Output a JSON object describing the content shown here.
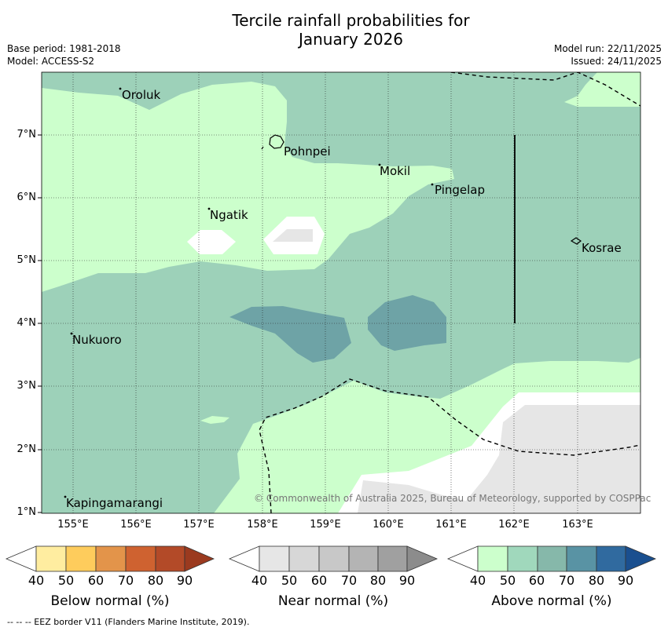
{
  "title_line1": "Tercile rainfall probabilities for",
  "title_line2": "January 2026",
  "meta_left": {
    "base_period": "Base period: 1981-2018",
    "model": "Model: ACCESS-S2"
  },
  "meta_right": {
    "model_run": "Model run: 22/11/2025",
    "issued": "Issued: 24/11/2025"
  },
  "lat_labels": [
    "7°N",
    "6°N",
    "5°N",
    "4°N",
    "3°N",
    "2°N",
    "1°N"
  ],
  "lon_labels": [
    "155°E",
    "156°E",
    "157°E",
    "158°E",
    "159°E",
    "160°E",
    "161°E",
    "162°E",
    "163°E"
  ],
  "places": {
    "oroluk": "Oroluk",
    "pohnpei": "Pohnpei",
    "mokil": "Mokil",
    "pingelap": "Pingelap",
    "ngatik": "Ngatik",
    "kosrae": "Kosrae",
    "nukuoro": "Nukuoro",
    "kapingamarangi": "Kapingamarangi"
  },
  "credit": "© Commonwealth of Australia 2025, Bureau of Meteorology, supported by COSPPac",
  "colorbars": {
    "below": {
      "label": "Below normal (%)",
      "ticks": [
        "40",
        "50",
        "60",
        "70",
        "80",
        "90"
      ],
      "colors": [
        "#ffeda0",
        "#fecc5c",
        "#e3944a",
        "#cf6230",
        "#b34a28",
        "#9b3a1f"
      ]
    },
    "near": {
      "label": "Near normal (%)",
      "ticks": [
        "40",
        "50",
        "60",
        "70",
        "80",
        "90"
      ],
      "colors": [
        "#e6e6e6",
        "#d7d7d7",
        "#c8c8c8",
        "#b4b4b4",
        "#a0a0a0",
        "#8c8c8c"
      ]
    },
    "above": {
      "label": "Above normal (%)",
      "ticks": [
        "40",
        "50",
        "60",
        "70",
        "80",
        "90"
      ],
      "colors": [
        "#ccffcc",
        "#a0d8bc",
        "#86b8aa",
        "#5993a4",
        "#306a9f",
        "#1a4f8f"
      ]
    }
  },
  "footnote": "--  --  -- EEZ border V11 (Flanders Marine Institute, 2019).",
  "map_colors": {
    "above_40_50": "#ccffcc",
    "above_50_60": "#9dd1b9",
    "above_60_70": "#6ea3a6",
    "near_40_50": "#e6e6e6",
    "no_dominant": "#ffffff"
  }
}
